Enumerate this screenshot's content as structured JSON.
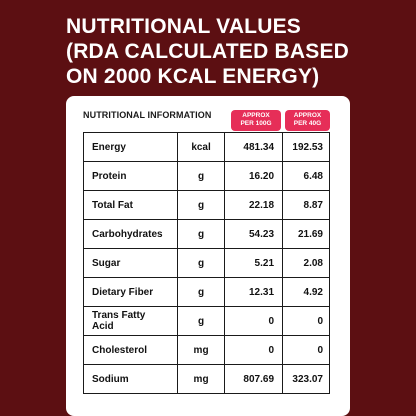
{
  "title": "NUTRITIONAL VALUES\n(RDA CALCULATED BASED\n ON 2000 KCAL ENERGY)",
  "card": {
    "heading": "NUTRITIONAL INFORMATION",
    "col1_label": "APPROX\nPER 100G",
    "col2_label": "APPROX\nPER 40G"
  },
  "rows": [
    {
      "name": "Energy",
      "unit": "kcal",
      "v1": "481.34",
      "v2": "192.53"
    },
    {
      "name": "Protein",
      "unit": "g",
      "v1": "16.20",
      "v2": "6.48"
    },
    {
      "name": "Total Fat",
      "unit": "g",
      "v1": "22.18",
      "v2": "8.87"
    },
    {
      "name": "Carbohydrates",
      "unit": "g",
      "v1": "54.23",
      "v2": "21.69"
    },
    {
      "name": "Sugar",
      "unit": "g",
      "v1": "5.21",
      "v2": "2.08"
    },
    {
      "name": "Dietary Fiber",
      "unit": "g",
      "v1": "12.31",
      "v2": "4.92"
    },
    {
      "name": "Trans Fatty Acid",
      "unit": "g",
      "v1": "0",
      "v2": "0"
    },
    {
      "name": "Cholesterol",
      "unit": "mg",
      "v1": "0",
      "v2": "0"
    },
    {
      "name": "Sodium",
      "unit": "mg",
      "v1": "807.69",
      "v2": "323.07"
    }
  ],
  "colors": {
    "background": "#5c0f12",
    "accent": "#e62e58",
    "card": "#ffffff"
  }
}
